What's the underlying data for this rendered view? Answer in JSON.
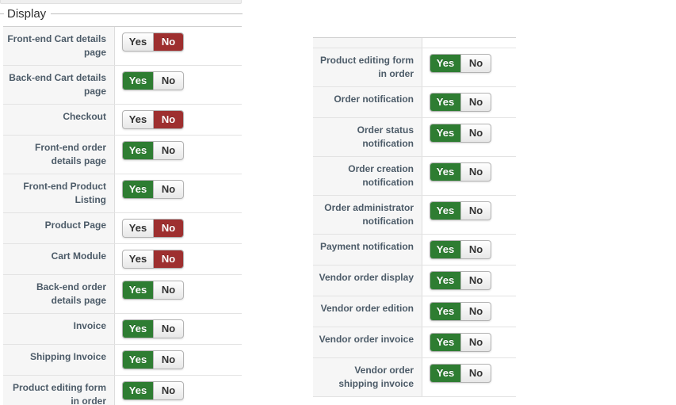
{
  "section": {
    "legend": "Display"
  },
  "toggle": {
    "yes_label": "Yes",
    "no_label": "No",
    "yes_active_color": "#2e7d32",
    "no_active_color": "#9e2f2f",
    "active_text_color": "#ffffff",
    "inactive_text_color": "#333333"
  },
  "columns": [
    {
      "name": "left",
      "rows": [
        {
          "label": "Front-end Cart details page",
          "value": "no"
        },
        {
          "label": "Back-end Cart details page",
          "value": "yes"
        },
        {
          "label": "Checkout",
          "value": "no"
        },
        {
          "label": "Front-end order details page",
          "value": "yes"
        },
        {
          "label": "Front-end Product Listing",
          "value": "yes"
        },
        {
          "label": "Product Page",
          "value": "no"
        },
        {
          "label": "Cart Module",
          "value": "no"
        },
        {
          "label": "Back-end order details page",
          "value": "yes"
        },
        {
          "label": "Invoice",
          "value": "yes"
        },
        {
          "label": "Shipping Invoice",
          "value": "yes"
        },
        {
          "label": "Product editing form in order",
          "value": "yes"
        }
      ]
    },
    {
      "name": "right",
      "rows": [
        {
          "label": "Product editing form in order",
          "value": "yes"
        },
        {
          "label": "Order notification",
          "value": "yes"
        },
        {
          "label": "Order status notification",
          "value": "yes"
        },
        {
          "label": "Order creation notification",
          "value": "yes"
        },
        {
          "label": "Order administrator notification",
          "value": "yes"
        },
        {
          "label": "Payment notification",
          "value": "yes"
        },
        {
          "label": "Vendor order display",
          "value": "yes"
        },
        {
          "label": "Vendor order edition",
          "value": "yes"
        },
        {
          "label": "Vendor order invoice",
          "value": "yes"
        },
        {
          "label": "Vendor order shipping invoice",
          "value": "yes"
        }
      ]
    }
  ]
}
